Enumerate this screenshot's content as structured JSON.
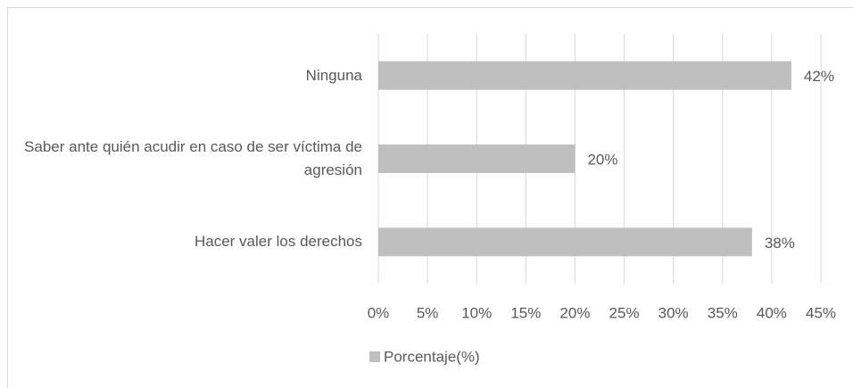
{
  "chart_data": {
    "type": "bar",
    "orientation": "horizontal",
    "categories": [
      "Ninguna",
      "Saber ante quién acudir en caso de ser víctima de agresión",
      "Hacer valer los derechos"
    ],
    "series": [
      {
        "name": "Porcentaje(%)",
        "color": "#bfbfbf",
        "values": [
          42,
          20,
          38
        ],
        "value_labels": [
          "42%",
          "20%",
          "38%"
        ]
      }
    ],
    "xlim": [
      0,
      45
    ],
    "xticks": [
      {
        "value": 0,
        "label": "0%"
      },
      {
        "value": 5,
        "label": "5%"
      },
      {
        "value": 10,
        "label": "10%"
      },
      {
        "value": 15,
        "label": "15%"
      },
      {
        "value": 20,
        "label": "20%"
      },
      {
        "value": 25,
        "label": "25%"
      },
      {
        "value": 30,
        "label": "30%"
      },
      {
        "value": 35,
        "label": "35%"
      },
      {
        "value": 40,
        "label": "40%"
      },
      {
        "value": 45,
        "label": "45%"
      }
    ],
    "grid": true,
    "legend": "bottom"
  }
}
